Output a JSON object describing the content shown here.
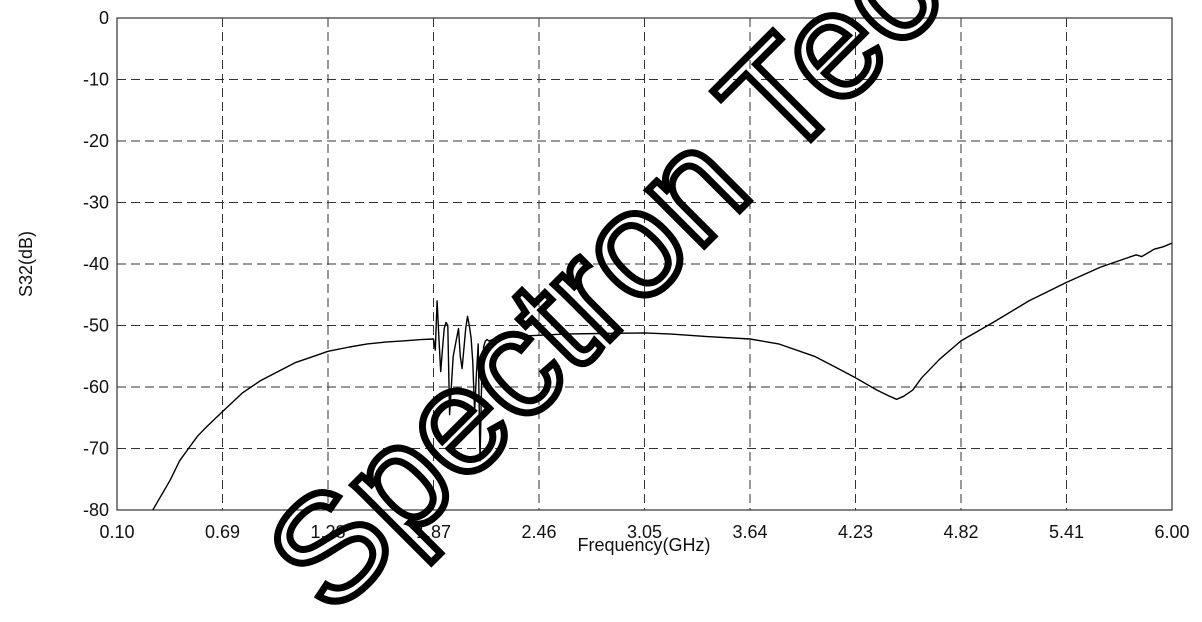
{
  "chart_data": {
    "type": "line",
    "title": "",
    "xlabel": "Frequency(GHz)",
    "ylabel": "S32(dB)",
    "xlim": [
      0.1,
      6.0
    ],
    "ylim": [
      -80,
      0
    ],
    "x_ticks": [
      "0.10",
      "0.69",
      "1.28",
      "1.87",
      "2.46",
      "3.05",
      "3.64",
      "4.23",
      "4.82",
      "5.41",
      "6.00"
    ],
    "y_ticks": [
      "0",
      "-10",
      "-20",
      "-30",
      "-40",
      "-50",
      "-60",
      "-70",
      "-80"
    ],
    "grid": true,
    "legend": "none",
    "line_color": "#000000",
    "watermark_text": "Spectron Tec",
    "series": [
      {
        "x": [
          0.3,
          0.33,
          0.36,
          0.4,
          0.45,
          0.5,
          0.55,
          0.6,
          0.69,
          0.8,
          0.9,
          1.0,
          1.1,
          1.2,
          1.28,
          1.4,
          1.5,
          1.6,
          1.7,
          1.8,
          1.87,
          1.88,
          1.89,
          1.9,
          1.91,
          1.92,
          1.93,
          1.94,
          1.95,
          1.96,
          1.98,
          2.0,
          2.01,
          2.02,
          2.03,
          2.05,
          2.06,
          2.07,
          2.08,
          2.09,
          2.1,
          2.11,
          2.12,
          2.13,
          2.14,
          2.15,
          2.16,
          2.17,
          2.18,
          2.19,
          2.2,
          2.21,
          2.22,
          2.24,
          2.26,
          2.3,
          2.46,
          2.6,
          2.8,
          3.05,
          3.2,
          3.4,
          3.64,
          3.8,
          4.0,
          4.1,
          4.23,
          4.35,
          4.42,
          4.46,
          4.5,
          4.55,
          4.6,
          4.7,
          4.82,
          5.0,
          5.2,
          5.41,
          5.6,
          5.75,
          5.8,
          5.83,
          5.86,
          5.9,
          5.95,
          6.0
        ],
        "y": [
          -80,
          -78.5,
          -77,
          -75,
          -72,
          -70,
          -68,
          -66.5,
          -64,
          -61,
          -59,
          -57.5,
          -56,
          -55,
          -54.2,
          -53.5,
          -53,
          -52.7,
          -52.5,
          -52.3,
          -52.2,
          -54,
          -46,
          -52,
          -57.5,
          -54,
          -50.5,
          -49.5,
          -50,
          -64.5,
          -55,
          -52,
          -50.5,
          -55,
          -57,
          -50.5,
          -48.5,
          -50,
          -52,
          -56,
          -64,
          -58,
          -53,
          -72,
          -58,
          -53.5,
          -52.5,
          -52.3,
          -52.5,
          -52.4,
          -52.3,
          -52.2,
          -52.1,
          -52,
          -51.9,
          -51.8,
          -51.6,
          -51.4,
          -51.3,
          -51.2,
          -51.4,
          -51.8,
          -52.2,
          -53,
          -55,
          -56.5,
          -58.5,
          -60.5,
          -61.5,
          -62,
          -61.5,
          -60.5,
          -58.5,
          -55.5,
          -52.5,
          -49.5,
          -46,
          -43,
          -40.5,
          -39,
          -38.5,
          -38.8,
          -38.3,
          -37.6,
          -37.2,
          -36.6
        ]
      }
    ]
  }
}
